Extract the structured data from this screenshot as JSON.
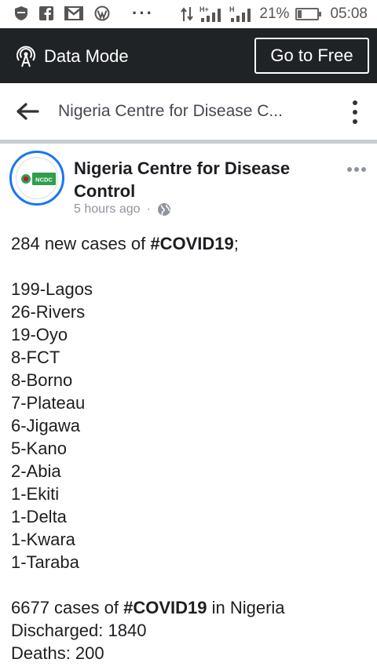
{
  "status_bar": {
    "icons": [
      "shield-icon",
      "facebook-icon",
      "gmail-icon",
      "wordpress-icon"
    ],
    "network_1": "H+",
    "network_2": "H",
    "battery": "21%",
    "battery_level": 0.21,
    "time": "05:08"
  },
  "data_mode_bar": {
    "label": "Data Mode",
    "go_free_label": "Go to Free"
  },
  "header": {
    "title": "Nigeria Centre for Disease C..."
  },
  "post": {
    "page_name": "Nigeria Centre for Disease Control",
    "time_ago": "5 hours ago",
    "separator": "·",
    "avatar_text": "NCDC",
    "intro": {
      "prefix": "284 new cases of ",
      "hashtag": "#COVID19",
      "suffix": ";"
    },
    "states": [
      "199-Lagos",
      "26-Rivers",
      "19-Oyo",
      "8-FCT",
      "8-Borno",
      "7-Plateau",
      "6-Jigawa",
      "5-Kano",
      "2-Abia",
      "1-Ekiti",
      "1-Delta",
      "1-Kwara",
      "1-Taraba"
    ],
    "total": {
      "prefix": "6677 cases of ",
      "hashtag": "#COVID19",
      "suffix": " in Nigeria"
    },
    "discharged": "Discharged: 1840",
    "deaths": "Deaths: 200"
  },
  "colors": {
    "data_bar_bg": "#202326",
    "avatar_ring": "#1877f2",
    "divider": "#c9ccd1",
    "ncdc_green": "#2e9e4f"
  }
}
